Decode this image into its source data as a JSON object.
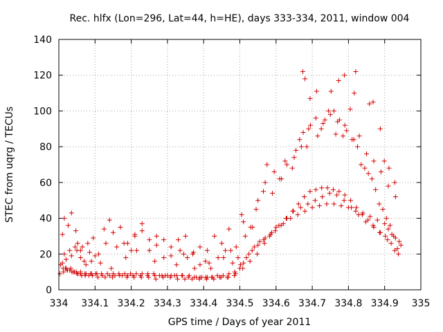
{
  "chart_data": {
    "type": "scatter",
    "title": "Rec. hlfx (Lon=296, Lat=44, h=HE), days 333-334, 2011, window 004",
    "xlabel": "GPS time / Days of year 2011",
    "ylabel": "STEC from uqrg / TECUs",
    "xlim": [
      334,
      335
    ],
    "ylim": [
      0,
      140
    ],
    "xticks": [
      334,
      334.1,
      334.2,
      334.3,
      334.4,
      334.5,
      334.6,
      334.7,
      334.8,
      334.9,
      335
    ],
    "xtick_labels": [
      "334",
      "334.1",
      "334.2",
      "334.3",
      "334.4",
      "334.5",
      "334.6",
      "334.7",
      "334.8",
      "334.9",
      "335"
    ],
    "yticks": [
      0,
      20,
      40,
      60,
      80,
      100,
      120,
      140
    ],
    "ytick_labels": [
      "0",
      "20",
      "40",
      "60",
      "80",
      "100",
      "120",
      "140"
    ],
    "grid": true,
    "marker": "+",
    "color": "#d40000",
    "x": [
      334.01,
      334.015,
      334.018,
      334.026,
      334.035,
      334.047,
      334.052,
      334.06,
      334.07,
      334.085,
      334.1,
      334.115,
      334.125,
      334.14,
      334.16,
      334.18,
      334.2,
      334.21,
      334.23,
      334.25,
      334.27,
      334.29,
      334.31,
      334.335,
      334.355,
      334.372,
      334.39,
      334.405,
      334.42,
      334.44,
      334.46,
      334.48,
      334.495,
      334.01,
      334.02,
      334.03,
      334.04,
      334.05,
      334.06,
      334.075,
      334.09,
      334.105,
      334.12,
      334.14,
      334.155,
      334.175,
      334.19,
      334.205,
      334.225,
      334.245,
      334.265,
      334.285,
      334.3,
      334.32,
      334.34,
      334.36,
      334.38,
      334.395,
      334.41,
      334.425,
      334.445,
      334.465,
      334.485,
      334.5,
      334.51,
      334.525,
      334.54,
      334.555,
      334.57,
      334.585,
      334.6,
      334.62,
      334.64,
      334.66,
      334.68,
      334.7,
      334.72,
      334.74,
      334.76,
      334.78,
      334.8,
      334.82,
      334.84,
      334.86,
      334.88,
      334.9,
      334.91,
      334.92,
      334.93,
      334.94,
      334.012,
      334.024,
      334.036,
      334.048,
      334.06,
      334.072,
      334.088,
      334.102,
      334.118,
      334.134,
      334.15,
      334.166,
      334.182,
      334.198,
      334.214,
      334.23,
      334.246,
      334.262,
      334.278,
      334.294,
      334.31,
      334.326,
      334.342,
      334.358,
      334.374,
      334.39,
      334.406,
      334.422,
      334.438,
      334.454,
      334.47,
      334.486,
      334.502,
      334.518,
      334.534,
      334.55,
      334.566,
      334.582,
      334.598,
      334.614,
      334.63,
      334.646,
      334.662,
      334.678,
      334.694,
      334.71,
      334.726,
      334.742,
      334.758,
      334.774,
      334.79,
      334.806,
      334.822,
      334.838,
      334.854,
      334.87,
      334.886,
      334.902,
      334.918,
      334.935,
      334.015,
      334.03,
      334.045,
      334.06,
      334.075,
      334.09,
      334.11,
      334.13,
      334.15,
      334.17,
      334.19,
      334.21,
      334.23,
      334.25,
      334.27,
      334.29,
      334.31,
      334.33,
      334.35,
      334.37,
      334.39,
      334.41,
      334.43,
      334.45,
      334.47,
      334.49,
      334.51,
      334.53,
      334.55,
      334.57,
      334.59,
      334.61,
      334.63,
      334.65,
      334.67,
      334.69,
      334.71,
      334.73,
      334.75,
      334.77,
      334.79,
      334.81,
      334.83,
      334.85,
      334.87,
      334.89,
      334.91,
      334.93,
      334.005,
      334.02,
      334.035,
      334.05,
      334.065,
      334.08,
      334.095,
      334.145,
      334.185,
      334.215,
      334.265,
      334.325,
      334.345,
      334.375,
      334.415,
      334.455,
      334.475,
      334.505,
      334.515,
      334.535,
      334.545,
      334.565,
      334.575,
      334.595,
      334.615,
      334.625,
      334.645,
      334.655,
      334.665,
      334.675,
      334.685,
      334.695,
      334.715,
      334.725,
      334.735,
      334.745,
      334.765,
      334.775,
      334.785,
      334.795,
      334.815,
      334.825,
      334.835,
      334.845,
      334.855,
      334.865,
      334.875,
      334.885,
      334.895,
      334.905,
      334.915,
      334.925,
      334.945,
      334.003,
      334.013,
      334.023,
      334.033,
      334.043,
      334.053,
      334.063,
      334.073,
      334.083,
      334.093,
      334.108,
      334.128,
      334.148,
      334.168,
      334.188,
      334.208,
      334.228,
      334.248,
      334.268,
      334.288,
      334.308,
      334.328,
      334.348,
      334.368,
      334.388,
      334.408,
      334.428,
      334.448,
      334.468,
      334.488,
      334.508,
      334.528,
      334.548,
      334.568,
      334.588,
      334.608,
      334.628,
      334.648,
      334.668,
      334.688,
      334.708,
      334.728,
      334.748,
      334.768,
      334.788,
      334.808,
      334.828,
      334.848,
      334.868,
      334.888,
      334.908,
      334.928,
      334.938,
      334.674,
      334.68,
      334.694,
      334.712,
      334.752,
      334.76,
      334.773,
      334.789,
      334.805,
      334.816,
      334.82,
      334.858,
      334.868,
      334.888,
      334.899,
      334.912,
      334.928
    ],
    "y": [
      31,
      40,
      12,
      36,
      43,
      33,
      26,
      22,
      16,
      21,
      19,
      15,
      34,
      39,
      24,
      26,
      22,
      31,
      37,
      28,
      30,
      28,
      19,
      22,
      18,
      21,
      14,
      16,
      12,
      18,
      22,
      15,
      18,
      15,
      12,
      11,
      10,
      9,
      9,
      9,
      9,
      9,
      8,
      8,
      8,
      8,
      8,
      8,
      8,
      8,
      8,
      8,
      8,
      8,
      8,
      8,
      7,
      7,
      7,
      7,
      7,
      7,
      8,
      12,
      15,
      20,
      24,
      27,
      29,
      31,
      35,
      37,
      40,
      42,
      44,
      46,
      47,
      48,
      48,
      47,
      46,
      44,
      43,
      41,
      39,
      37,
      34,
      31,
      29,
      27,
      12,
      11,
      10,
      10,
      10,
      9,
      9,
      9,
      9,
      9,
      9,
      9,
      9,
      9,
      9,
      9,
      9,
      9,
      8,
      8,
      8,
      8,
      8,
      7,
      7,
      7,
      7,
      7,
      8,
      8,
      9,
      10,
      14,
      18,
      22,
      25,
      28,
      30,
      33,
      36,
      40,
      44,
      48,
      52,
      55,
      56,
      57,
      57,
      56,
      55,
      53,
      50,
      46,
      42,
      39,
      35,
      32,
      30,
      26,
      23,
      20,
      22,
      24,
      18,
      14,
      16,
      20,
      26,
      32,
      35,
      26,
      30,
      33,
      22,
      25,
      18,
      24,
      28,
      30,
      20,
      24,
      22,
      30,
      26,
      34,
      24,
      38,
      35,
      50,
      60,
      54,
      62,
      70,
      74,
      80,
      90,
      96,
      93,
      98,
      94,
      92,
      84,
      86,
      76,
      72,
      66,
      58,
      52,
      14,
      17,
      19,
      22,
      24,
      26,
      29,
      12,
      18,
      22,
      16,
      14,
      20,
      12,
      15,
      18,
      22,
      42,
      30,
      35,
      45,
      55,
      70,
      66,
      62,
      72,
      68,
      78,
      84,
      88,
      80,
      92,
      86,
      90,
      95,
      100,
      87,
      95,
      86,
      89,
      84,
      80,
      70,
      68,
      65,
      62,
      56,
      48,
      45,
      40,
      36,
      30,
      25,
      9,
      10,
      11,
      12,
      10,
      9,
      8,
      8,
      8,
      8,
      7,
      7,
      7,
      8,
      7,
      7,
      7,
      7,
      6,
      7,
      7,
      6,
      6,
      6,
      6,
      6,
      6,
      7,
      7,
      9,
      12,
      16,
      20,
      26,
      32,
      36,
      40,
      44,
      46,
      48,
      50,
      52,
      54,
      53,
      50,
      46,
      42,
      38,
      36,
      32,
      28,
      22,
      20,
      122,
      118,
      107,
      111,
      111,
      100,
      117,
      120,
      101,
      110,
      122,
      104,
      105,
      90,
      72,
      68,
      60
    ]
  }
}
